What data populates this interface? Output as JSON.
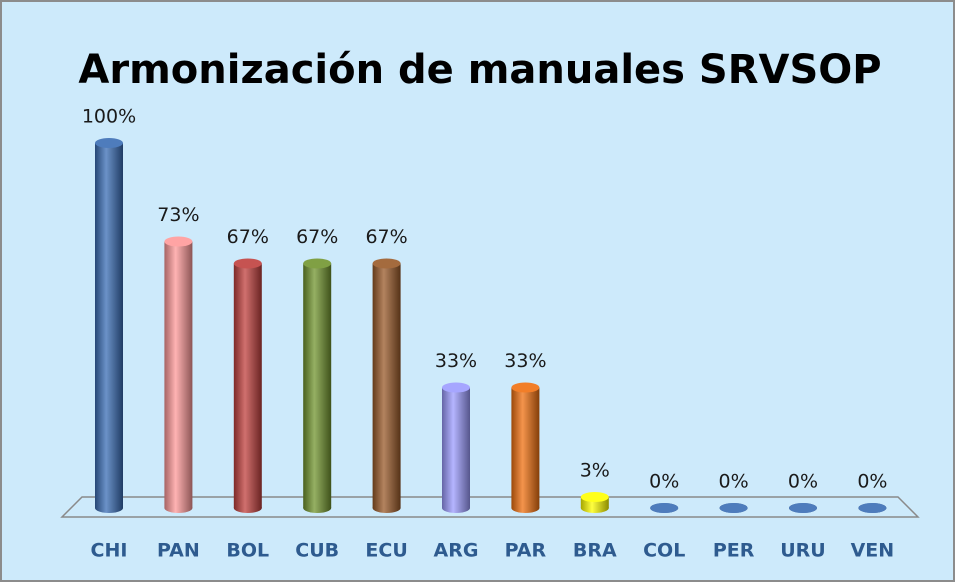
{
  "chart_data": {
    "type": "bar",
    "title": "Armonización de manuales SRVSOP",
    "categories": [
      "CHI",
      "PAN",
      "BOL",
      "CUB",
      "ECU",
      "ARG",
      "PAR",
      "BRA",
      "COL",
      "PER",
      "URU",
      "VEN"
    ],
    "values": [
      100,
      73,
      67,
      67,
      67,
      33,
      33,
      3,
      0,
      0,
      0,
      0
    ],
    "value_labels": [
      "100%",
      "73%",
      "67%",
      "67%",
      "67%",
      "33%",
      "33%",
      "3%",
      "0%",
      "0%",
      "0%",
      "0%"
    ],
    "colors": [
      "#3a6db5",
      "#ff9a9a",
      "#c0403e",
      "#72952f",
      "#9a5a29",
      "#9c9cff",
      "#f07010",
      "#ffff00",
      "#3a6db5",
      "#3a6db5",
      "#3a6db5",
      "#3a6db5"
    ]
  }
}
